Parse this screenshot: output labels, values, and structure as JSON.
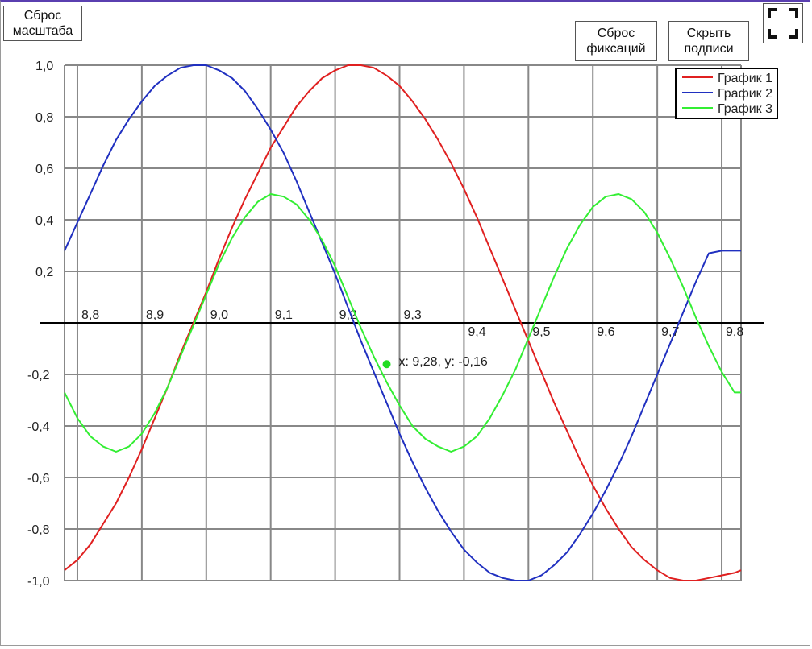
{
  "buttons": {
    "reset_zoom": "Сброс\nмасштаба",
    "reset_fix": "Сброс\nфиксаций",
    "hide_labels": "Скрыть\nподписи"
  },
  "chart_data": {
    "type": "line",
    "xlim": [
      8.78,
      9.83
    ],
    "ylim": [
      -1.0,
      1.0
    ],
    "x_ticks": [
      {
        "value": 8.8,
        "label": "8,8"
      },
      {
        "value": 8.9,
        "label": "8,9"
      },
      {
        "value": 9.0,
        "label": "9,0"
      },
      {
        "value": 9.1,
        "label": "9,1"
      },
      {
        "value": 9.2,
        "label": "9,2"
      },
      {
        "value": 9.3,
        "label": "9,3"
      },
      {
        "value": 9.4,
        "label": "9,4"
      },
      {
        "value": 9.5,
        "label": "9,5"
      },
      {
        "value": 9.6,
        "label": "9,6"
      },
      {
        "value": 9.7,
        "label": "9,7"
      },
      {
        "value": 9.8,
        "label": "9,8"
      }
    ],
    "y_ticks": [
      {
        "value": 1.0,
        "label": "1,0"
      },
      {
        "value": 0.8,
        "label": "0,8"
      },
      {
        "value": 0.6,
        "label": "0,6"
      },
      {
        "value": 0.4,
        "label": "0,4"
      },
      {
        "value": 0.2,
        "label": "0,2"
      },
      {
        "value": -0.2,
        "label": "-0,2"
      },
      {
        "value": -0.4,
        "label": "-0,4"
      },
      {
        "value": -0.6,
        "label": "-0,6"
      },
      {
        "value": -0.8,
        "label": "-0,8"
      },
      {
        "value": -1.0,
        "label": "-1,0"
      }
    ],
    "grid": true,
    "legend_position": "top-right",
    "series": [
      {
        "name": "График 1",
        "color": "#e02020",
        "x": [
          8.78,
          8.8,
          8.82,
          8.84,
          8.86,
          8.88,
          8.9,
          8.92,
          8.94,
          8.96,
          8.98,
          9.0,
          9.02,
          9.04,
          9.06,
          9.08,
          9.1,
          9.12,
          9.14,
          9.16,
          9.18,
          9.2,
          9.22,
          9.24,
          9.26,
          9.28,
          9.3,
          9.32,
          9.34,
          9.36,
          9.38,
          9.4,
          9.42,
          9.44,
          9.46,
          9.48,
          9.5,
          9.52,
          9.54,
          9.56,
          9.58,
          9.6,
          9.62,
          9.64,
          9.66,
          9.68,
          9.7,
          9.72,
          9.74,
          9.76,
          9.78,
          9.8,
          9.82,
          9.83
        ],
        "y": [
          -0.96,
          -0.92,
          -0.86,
          -0.78,
          -0.7,
          -0.6,
          -0.49,
          -0.37,
          -0.25,
          -0.12,
          0.0,
          0.12,
          0.25,
          0.37,
          0.48,
          0.58,
          0.68,
          0.76,
          0.84,
          0.9,
          0.95,
          0.98,
          1.0,
          1.0,
          0.99,
          0.96,
          0.92,
          0.86,
          0.79,
          0.71,
          0.62,
          0.52,
          0.41,
          0.29,
          0.17,
          0.05,
          -0.07,
          -0.19,
          -0.31,
          -0.42,
          -0.53,
          -0.63,
          -0.72,
          -0.8,
          -0.87,
          -0.92,
          -0.96,
          -0.99,
          -1.0,
          -1.0,
          -0.99,
          -0.98,
          -0.97,
          -0.96
        ]
      },
      {
        "name": "График 2",
        "color": "#2030c0",
        "x": [
          8.78,
          8.8,
          8.82,
          8.84,
          8.86,
          8.88,
          8.9,
          8.92,
          8.94,
          8.96,
          8.98,
          9.0,
          9.02,
          9.04,
          9.06,
          9.08,
          9.1,
          9.12,
          9.14,
          9.16,
          9.18,
          9.2,
          9.22,
          9.24,
          9.26,
          9.28,
          9.3,
          9.32,
          9.34,
          9.36,
          9.38,
          9.4,
          9.42,
          9.44,
          9.46,
          9.48,
          9.5,
          9.52,
          9.54,
          9.56,
          9.58,
          9.6,
          9.62,
          9.64,
          9.66,
          9.68,
          9.7,
          9.72,
          9.74,
          9.76,
          9.78,
          9.8,
          9.82,
          9.83
        ],
        "y": [
          0.28,
          0.39,
          0.5,
          0.61,
          0.71,
          0.79,
          0.86,
          0.92,
          0.96,
          0.99,
          1.0,
          1.0,
          0.98,
          0.95,
          0.9,
          0.83,
          0.75,
          0.66,
          0.55,
          0.43,
          0.31,
          0.19,
          0.06,
          -0.07,
          -0.19,
          -0.31,
          -0.43,
          -0.54,
          -0.64,
          -0.73,
          -0.81,
          -0.88,
          -0.93,
          -0.97,
          -0.99,
          -1.0,
          -1.0,
          -0.98,
          -0.94,
          -0.89,
          -0.82,
          -0.74,
          -0.65,
          -0.55,
          -0.44,
          -0.32,
          -0.2,
          -0.08,
          0.04,
          0.16,
          0.27,
          0.28,
          0.28,
          0.28
        ]
      },
      {
        "name": "График 3",
        "color": "#33ee33",
        "x": [
          8.78,
          8.8,
          8.82,
          8.84,
          8.86,
          8.88,
          8.9,
          8.92,
          8.94,
          8.96,
          8.98,
          9.0,
          9.02,
          9.04,
          9.06,
          9.08,
          9.1,
          9.12,
          9.14,
          9.16,
          9.18,
          9.2,
          9.22,
          9.24,
          9.26,
          9.28,
          9.3,
          9.32,
          9.34,
          9.36,
          9.38,
          9.4,
          9.42,
          9.44,
          9.46,
          9.48,
          9.5,
          9.52,
          9.54,
          9.56,
          9.58,
          9.6,
          9.62,
          9.64,
          9.66,
          9.68,
          9.7,
          9.72,
          9.74,
          9.76,
          9.78,
          9.8,
          9.82,
          9.83
        ],
        "y": [
          -0.27,
          -0.37,
          -0.44,
          -0.48,
          -0.5,
          -0.48,
          -0.43,
          -0.35,
          -0.25,
          -0.13,
          -0.01,
          0.11,
          0.23,
          0.33,
          0.41,
          0.47,
          0.5,
          0.49,
          0.46,
          0.4,
          0.32,
          0.22,
          0.1,
          -0.02,
          -0.13,
          -0.23,
          -0.32,
          -0.4,
          -0.45,
          -0.48,
          -0.5,
          -0.48,
          -0.44,
          -0.37,
          -0.28,
          -0.18,
          -0.06,
          0.06,
          0.18,
          0.29,
          0.38,
          0.45,
          0.49,
          0.5,
          0.48,
          0.43,
          0.35,
          0.25,
          0.14,
          0.02,
          -0.09,
          -0.19,
          -0.27,
          -0.27
        ]
      }
    ],
    "marker": {
      "x": 9.28,
      "y": -0.16,
      "label": "x: 9,28, y: -0,16",
      "color": "#22dd22"
    }
  }
}
